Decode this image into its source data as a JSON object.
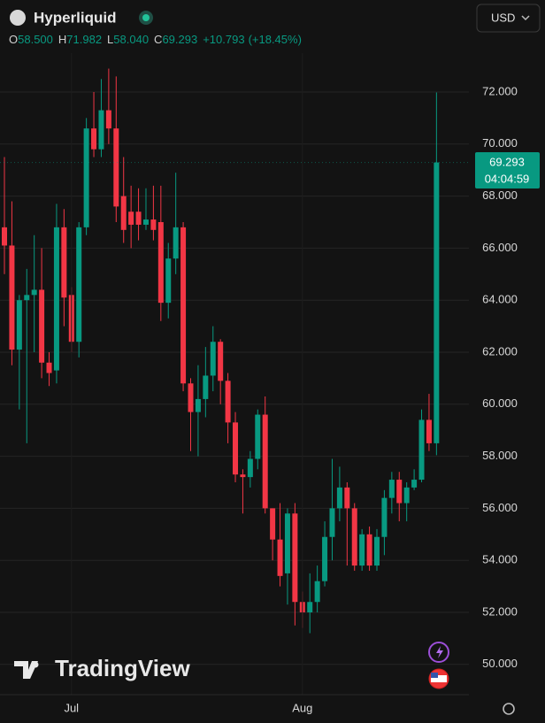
{
  "chart_data": {
    "type": "candlestick",
    "symbol": "Hyperliquid",
    "currency": "USD",
    "watermark": "TradingView",
    "ohlc_legend": [
      {
        "key": "O",
        "value": "58.500"
      },
      {
        "key": "H",
        "value": "71.982"
      },
      {
        "key": "L",
        "value": "58.040"
      },
      {
        "key": "C",
        "value": "69.293"
      }
    ],
    "change": "+10.793",
    "change_percent": "(+18.45%)",
    "last_price": 69.293,
    "countdown": "04:04:59",
    "categories": [
      null,
      null,
      null,
      null,
      null,
      null,
      null,
      null,
      null,
      "Jul",
      null,
      null,
      null,
      null,
      null,
      null,
      null,
      null,
      null,
      null,
      null,
      null,
      null,
      null,
      null,
      null,
      null,
      null,
      null,
      null,
      null,
      null,
      null,
      null,
      null,
      null,
      null,
      null,
      null,
      null,
      "Aug",
      null,
      null,
      null,
      null,
      null,
      null,
      null,
      null,
      null,
      null,
      null,
      null,
      null,
      null,
      null,
      null,
      null,
      null
    ],
    "open": [
      66.8,
      66.1,
      62.1,
      64.0,
      64.2,
      64.4,
      61.6,
      61.3,
      66.8,
      64.2,
      62.4,
      66.8,
      70.6,
      69.8,
      71.3,
      70.6,
      68.0,
      67.4,
      67.4,
      66.9,
      67.1,
      67.0,
      63.9,
      65.6,
      66.8,
      60.8,
      59.7,
      60.2,
      61.1,
      62.4,
      60.9,
      59.3,
      57.3,
      57.2,
      57.9,
      59.6,
      56.0,
      54.8,
      53.5,
      55.8,
      52.4,
      52.0,
      52.4,
      53.2,
      54.9,
      56.0,
      56.8,
      56.0,
      53.8,
      55.0,
      53.8,
      54.9,
      56.4,
      57.1,
      56.2,
      56.8,
      57.1,
      59.4,
      58.5
    ],
    "high": [
      69.5,
      67.8,
      64.2,
      65.2,
      66.5,
      66.0,
      62.0,
      67.7,
      67.5,
      64.5,
      67.0,
      71.0,
      72.0,
      72.5,
      72.9,
      72.6,
      69.5,
      68.4,
      68.3,
      68.3,
      68.4,
      68.4,
      66.2,
      68.9,
      67.0,
      61.0,
      61.5,
      62.2,
      63.0,
      62.5,
      61.2,
      59.7,
      57.5,
      58.2,
      59.8,
      60.3,
      56.0,
      56.2,
      56.0,
      56.2,
      52.8,
      53.5,
      53.8,
      55.5,
      57.9,
      57.6,
      57.0,
      56.2,
      55.2,
      55.3,
      55.2,
      56.7,
      57.4,
      57.4,
      57.0,
      57.5,
      59.8,
      60.4,
      71.982
    ],
    "low": [
      65.0,
      61.5,
      59.8,
      58.5,
      62.0,
      61.0,
      60.7,
      60.8,
      63.0,
      62.0,
      61.8,
      66.5,
      69.5,
      69.5,
      70.0,
      67.0,
      66.2,
      66.0,
      66.3,
      66.7,
      66.3,
      63.2,
      63.3,
      65.0,
      60.5,
      58.2,
      58.0,
      59.5,
      60.5,
      60.0,
      58.5,
      57.0,
      55.8,
      56.8,
      57.5,
      55.8,
      54.0,
      53.0,
      52.3,
      51.5,
      51.4,
      51.2,
      52.0,
      53.0,
      54.0,
      55.5,
      53.8,
      53.6,
      53.6,
      53.6,
      53.6,
      54.2,
      55.8,
      55.5,
      55.5,
      56.7,
      57.0,
      58.2,
      58.04
    ],
    "close": [
      66.1,
      62.1,
      64.0,
      64.2,
      64.4,
      61.6,
      61.2,
      66.8,
      64.1,
      62.4,
      66.8,
      70.6,
      69.8,
      71.3,
      70.6,
      67.6,
      66.7,
      66.9,
      66.9,
      67.1,
      66.7,
      63.9,
      65.6,
      66.8,
      60.8,
      59.7,
      60.2,
      61.1,
      62.4,
      60.9,
      59.3,
      57.3,
      57.2,
      57.9,
      59.6,
      56.0,
      54.8,
      53.4,
      55.8,
      52.4,
      52.0,
      52.4,
      53.2,
      54.9,
      56.0,
      56.8,
      56.0,
      53.8,
      55.0,
      53.8,
      54.9,
      56.4,
      57.1,
      56.2,
      56.8,
      57.1,
      59.4,
      58.5,
      69.293
    ],
    "up_color": "#089981",
    "down_color": "#f23645",
    "ylim": [
      49.2,
      73.5
    ],
    "yticks": [
      {
        "value": 50,
        "label": "50.000"
      },
      {
        "value": 52,
        "label": "52.000"
      },
      {
        "value": 54,
        "label": "54.000"
      },
      {
        "value": 56,
        "label": "56.000"
      },
      {
        "value": 58,
        "label": "58.000"
      },
      {
        "value": 60,
        "label": "60.000"
      },
      {
        "value": 62,
        "label": "62.000"
      },
      {
        "value": 64,
        "label": "64.000"
      },
      {
        "value": 66,
        "label": "66.000"
      },
      {
        "value": 68,
        "label": "68.000"
      },
      {
        "value": 70,
        "label": "70.000"
      },
      {
        "value": 72,
        "label": "72.000"
      }
    ],
    "grid": true
  }
}
